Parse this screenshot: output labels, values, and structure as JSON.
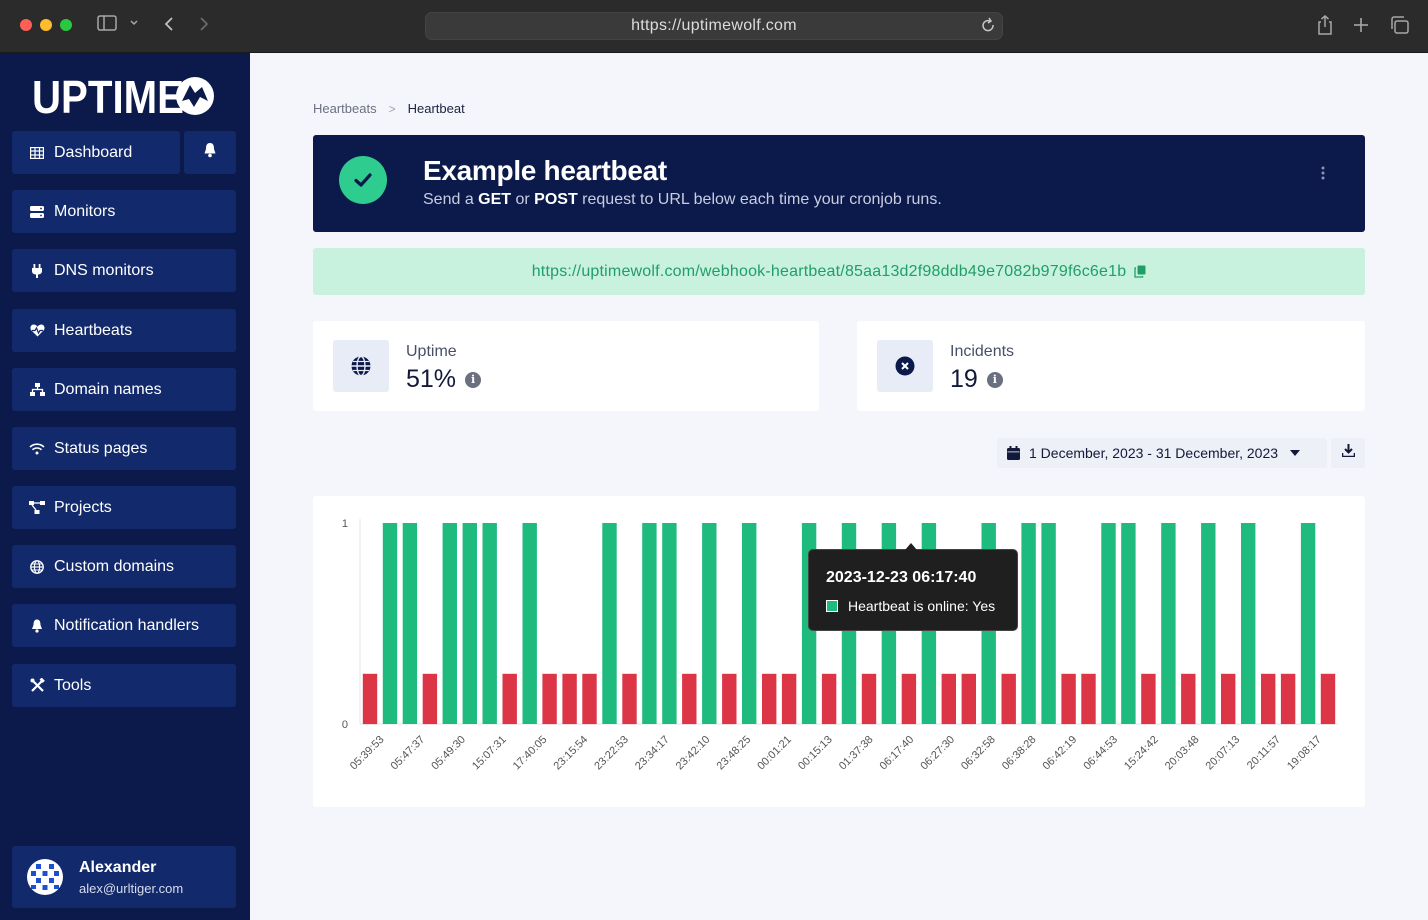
{
  "browser": {
    "url": "https://uptimewolf.com",
    "icons": [
      "close-dot",
      "minimize-dot",
      "zoom-dot",
      "sidebar-toggle-icon",
      "chevron-down-icon",
      "back-icon",
      "forward-icon",
      "reload-icon",
      "share-icon",
      "new-tab-icon",
      "tabs-icon"
    ]
  },
  "sidebar": {
    "logo_text": "UPTIME",
    "items": [
      {
        "label": "Dashboard",
        "icon": "table-icon"
      },
      {
        "label": "Monitors",
        "icon": "server-icon"
      },
      {
        "label": "DNS monitors",
        "icon": "plug-icon"
      },
      {
        "label": "Heartbeats",
        "icon": "heart-pulse-icon"
      },
      {
        "label": "Domain names",
        "icon": "sitemap-icon"
      },
      {
        "label": "Status pages",
        "icon": "wifi-icon"
      },
      {
        "label": "Projects",
        "icon": "diagram-icon"
      },
      {
        "label": "Custom domains",
        "icon": "globe-icon"
      },
      {
        "label": "Notification handlers",
        "icon": "bell-icon"
      },
      {
        "label": "Tools",
        "icon": "tools-icon"
      }
    ],
    "user": {
      "name": "Alexander",
      "email": "alex@urltiger.com"
    }
  },
  "breadcrumb": {
    "parent": "Heartbeats",
    "separator": ">",
    "current": "Heartbeat"
  },
  "hero": {
    "title": "Example heartbeat",
    "sub_prefix": "Send a ",
    "sub_get": "GET",
    "sub_or": " or ",
    "sub_post": "POST",
    "sub_suffix": " request to URL below each time your cronjob runs."
  },
  "webhook_url": "https://uptimewolf.com/webhook-heartbeat/85aa13d2f98ddb49e7082b979f6c6e1b",
  "stats": {
    "uptime": {
      "label": "Uptime",
      "value": "51%"
    },
    "incidents": {
      "label": "Incidents",
      "value": "19"
    }
  },
  "date_range": "1 December, 2023 - 31 December, 2023",
  "tooltip": {
    "title": "2023-12-23 06:17:40",
    "line": "Heartbeat is online: Yes"
  },
  "colors": {
    "online": "#1fba7d",
    "offline": "#dc3545",
    "sidebar": "#0b1a4a",
    "accent": "#2ecc8f"
  },
  "chart_data": {
    "type": "bar",
    "title": "",
    "xlabel": "",
    "ylabel": "",
    "ylim": [
      0,
      1
    ],
    "yticks": [
      "0",
      "1"
    ],
    "tick_labels": [
      "05:39:53",
      "05:47:37",
      "05:49:30",
      "15:07:31",
      "17:40:05",
      "23:15:54",
      "23:22:53",
      "23:34:17",
      "23:42:10",
      "23:48:25",
      "00:01:21",
      "00:15:13",
      "01:37:38",
      "06:17:40",
      "06:27:30",
      "06:32:58",
      "06:38:28",
      "06:42:19",
      "06:44:53",
      "15:24:42",
      "20:03:48",
      "20:07:13",
      "20:11:57",
      "19:08:17"
    ],
    "series": [
      {
        "name": "Heartbeat is online",
        "values": [
          0.25,
          1,
          1,
          0.25,
          1,
          1,
          1,
          0.25,
          1,
          0.25,
          0.25,
          0.25,
          1,
          0.25,
          1,
          1,
          0.25,
          1,
          0.25,
          1,
          0.25,
          0.25,
          1,
          0.25,
          1,
          0.25,
          1,
          0.25,
          1,
          0.25,
          0.25,
          1,
          0.25,
          1,
          1,
          0.25,
          0.25,
          1,
          1,
          0.25,
          1,
          0.25,
          1,
          0.25,
          1,
          0.25,
          0.25,
          1,
          0.25
        ]
      }
    ]
  }
}
